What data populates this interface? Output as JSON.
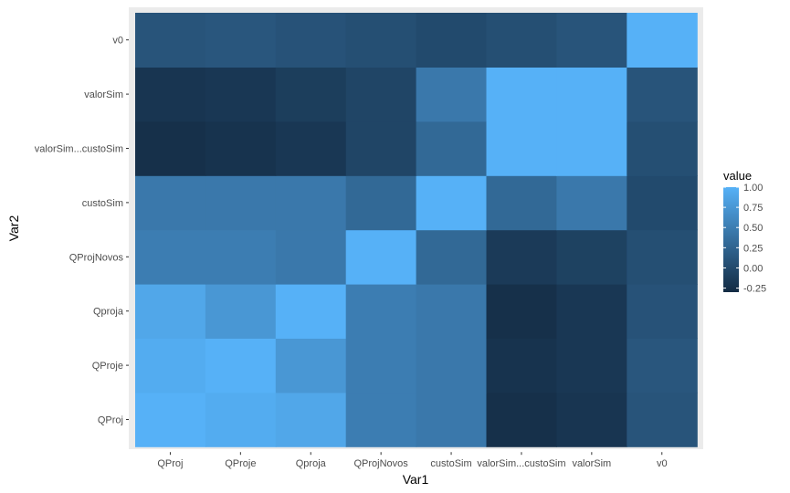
{
  "chart_data": {
    "type": "heatmap",
    "title": "",
    "xlabel": "Var1",
    "ylabel": "Var2",
    "x_categories": [
      "QProj",
      "QProje",
      "Qproja",
      "QProjNovos",
      "custoSim",
      "valorSim...custoSim",
      "valorSim",
      "v0"
    ],
    "y_categories": [
      "QProj",
      "QProje",
      "Qproja",
      "QProjNovos",
      "custoSim",
      "valorSim...custoSim",
      "valorSim",
      "v0"
    ],
    "values": [
      [
        1.0,
        0.95,
        0.9,
        0.5,
        0.45,
        -0.25,
        -0.2,
        0.1
      ],
      [
        0.95,
        1.0,
        0.75,
        0.5,
        0.45,
        -0.22,
        -0.18,
        0.12
      ],
      [
        0.9,
        0.75,
        1.0,
        0.5,
        0.45,
        -0.25,
        -0.18,
        0.08
      ],
      [
        0.5,
        0.5,
        0.45,
        1.0,
        0.3,
        -0.15,
        -0.08,
        0.05
      ],
      [
        0.45,
        0.45,
        0.45,
        0.3,
        1.0,
        0.3,
        0.45,
        0.0
      ],
      [
        -0.25,
        -0.22,
        -0.18,
        -0.05,
        0.3,
        1.0,
        1.0,
        0.05
      ],
      [
        -0.2,
        -0.18,
        -0.12,
        -0.05,
        0.45,
        1.0,
        1.0,
        0.1
      ],
      [
        0.1,
        0.12,
        0.08,
        0.05,
        0.0,
        0.05,
        0.1,
        1.0
      ]
    ],
    "legend": {
      "title": "value",
      "placement": "right",
      "ticks": [
        "1.00",
        "0.75",
        "0.50",
        "0.25",
        "0.00",
        "-0.25"
      ],
      "tick_values": [
        1.0,
        0.75,
        0.5,
        0.25,
        0.0,
        -0.25
      ],
      "range": [
        -0.3,
        1.0
      ]
    },
    "colors": {
      "low": "#132B43",
      "high": "#56B1F7",
      "panel_background": "#EBEBEB",
      "grid": "#FFFFFF"
    },
    "grid": true
  }
}
